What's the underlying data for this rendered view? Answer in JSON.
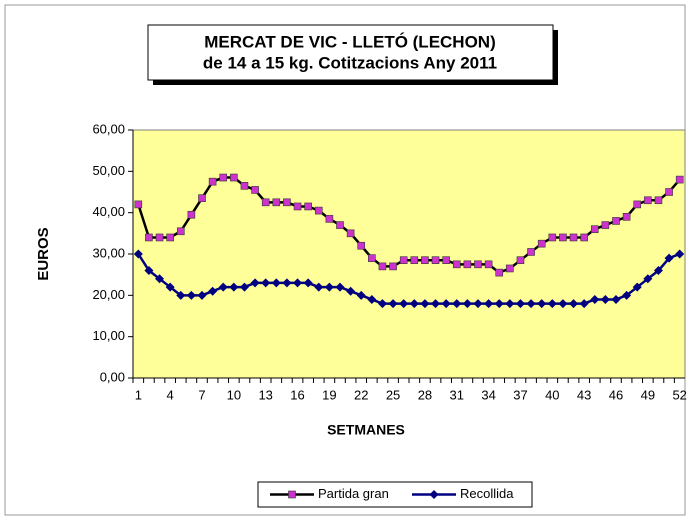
{
  "chart_data": {
    "type": "line",
    "title": [
      "MERCAT DE VIC - LLETÓ (LECHON)",
      "de 14 a 15 kg.  Cotitzacions Any 2011"
    ],
    "x_label": "SETMANES",
    "y_label": "EUROS",
    "categories": [
      1,
      null,
      null,
      4,
      null,
      null,
      7,
      null,
      null,
      10,
      null,
      null,
      13,
      null,
      null,
      16,
      null,
      null,
      19,
      null,
      null,
      22,
      null,
      null,
      25,
      null,
      null,
      28,
      null,
      null,
      31,
      null,
      null,
      34,
      null,
      null,
      37,
      null,
      null,
      40,
      null,
      null,
      43,
      null,
      null,
      46,
      null,
      null,
      49,
      null,
      null,
      52
    ],
    "series": [
      {
        "name": "Partida gran",
        "color": "#000000",
        "marker_color": "#cc33cc",
        "marker": "square",
        "values": [
          42,
          34,
          34,
          34,
          35.5,
          39.5,
          43.5,
          47.5,
          48.5,
          48.5,
          46.5,
          45.5,
          42.5,
          42.5,
          42.5,
          41.5,
          41.5,
          40.5,
          38.5,
          37,
          35,
          32,
          29,
          27,
          27,
          28.5,
          28.5,
          28.5,
          28.5,
          28.5,
          27.5,
          27.5,
          27.5,
          27.5,
          25.5,
          26.5,
          28.5,
          30.5,
          32.5,
          34,
          34,
          34,
          34,
          36,
          37,
          38,
          39,
          42,
          43,
          43,
          45,
          48
        ]
      },
      {
        "name": "Recollida",
        "color": "#000080",
        "marker_color": "#000080",
        "marker": "diamond",
        "values": [
          30,
          26,
          24,
          22,
          20,
          20,
          20,
          21,
          22,
          22,
          22,
          23,
          23,
          23,
          23,
          23,
          23,
          22,
          22,
          22,
          21,
          20,
          19,
          18,
          18,
          18,
          18,
          18,
          18,
          18,
          18,
          18,
          18,
          18,
          18,
          18,
          18,
          18,
          18,
          18,
          18,
          18,
          18,
          19,
          19,
          19,
          20,
          22,
          24,
          26,
          29,
          30
        ]
      }
    ],
    "ylim": [
      0,
      60
    ],
    "yticks": [
      {
        "value": 0,
        "label": "0,00"
      },
      {
        "value": 10,
        "label": "10,00"
      },
      {
        "value": 20,
        "label": "20,00"
      },
      {
        "value": 30,
        "label": "30,00"
      },
      {
        "value": 40,
        "label": "40,00"
      },
      {
        "value": 50,
        "label": "50,00"
      },
      {
        "value": 60,
        "label": "60,00"
      }
    ],
    "plot_background": "#ffff99",
    "legend": "bottom"
  }
}
